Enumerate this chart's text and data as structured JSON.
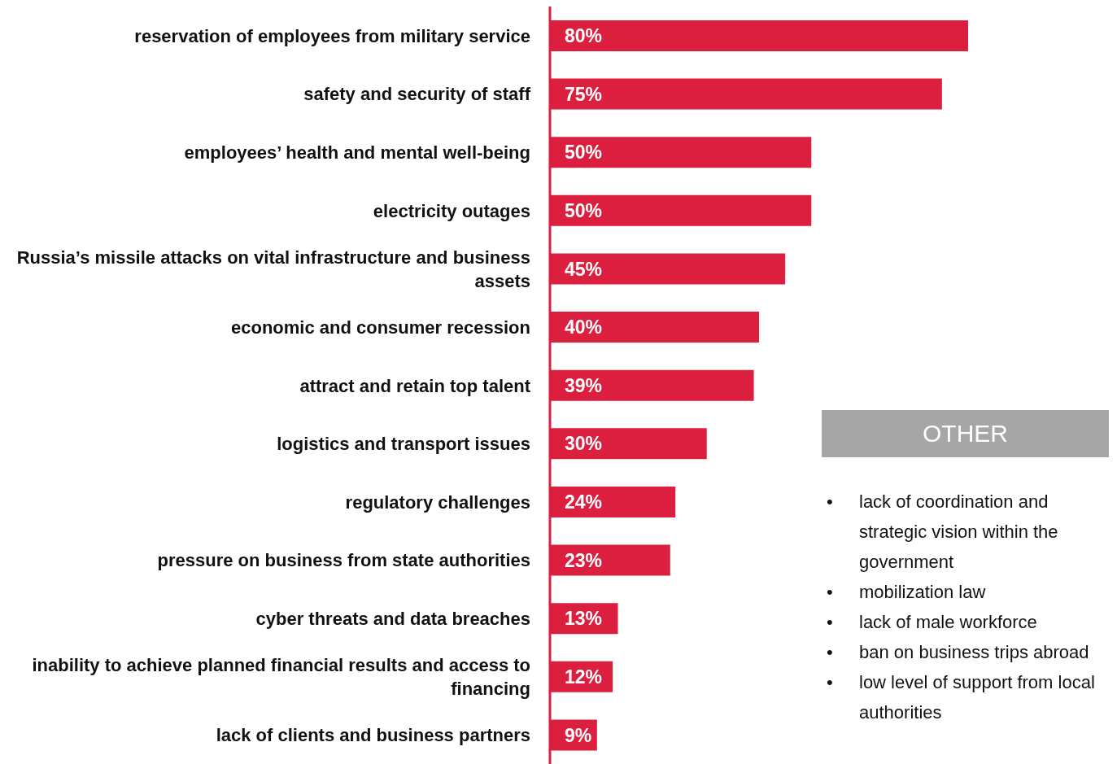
{
  "chart_data": {
    "type": "bar",
    "orientation": "horizontal",
    "color": "#dc1f3f",
    "categories": [
      "reservation of employees from military service",
      "safety and security of staff",
      "employees’ health and mental well-being",
      "electricity outages",
      "Russia’s missile attacks on vital infrastructure and business assets",
      "economic and consumer recession",
      "attract and retain top talent",
      "logistics and transport issues",
      "regulatory challenges",
      "pressure on business from state authorities",
      "cyber threats and data breaches",
      "inability to achieve planned financial results and access to financing",
      "lack of clients and business partners"
    ],
    "values": [
      80,
      75,
      50,
      50,
      45,
      40,
      39,
      30,
      24,
      23,
      13,
      12,
      9
    ],
    "value_labels": [
      "80%",
      "75%",
      "50%",
      "50%",
      "45%",
      "40%",
      "39%",
      "30%",
      "24%",
      "23%",
      "13%",
      "12%",
      "9%"
    ],
    "tick_labels": "y",
    "annotations": [
      "OTHER",
      "• lack of coordination and strategic vision within the government",
      "• mobilization law",
      "• lack of male workforce",
      "• ban on business trips abroad",
      "• low level of support from local authorities"
    ]
  }
}
